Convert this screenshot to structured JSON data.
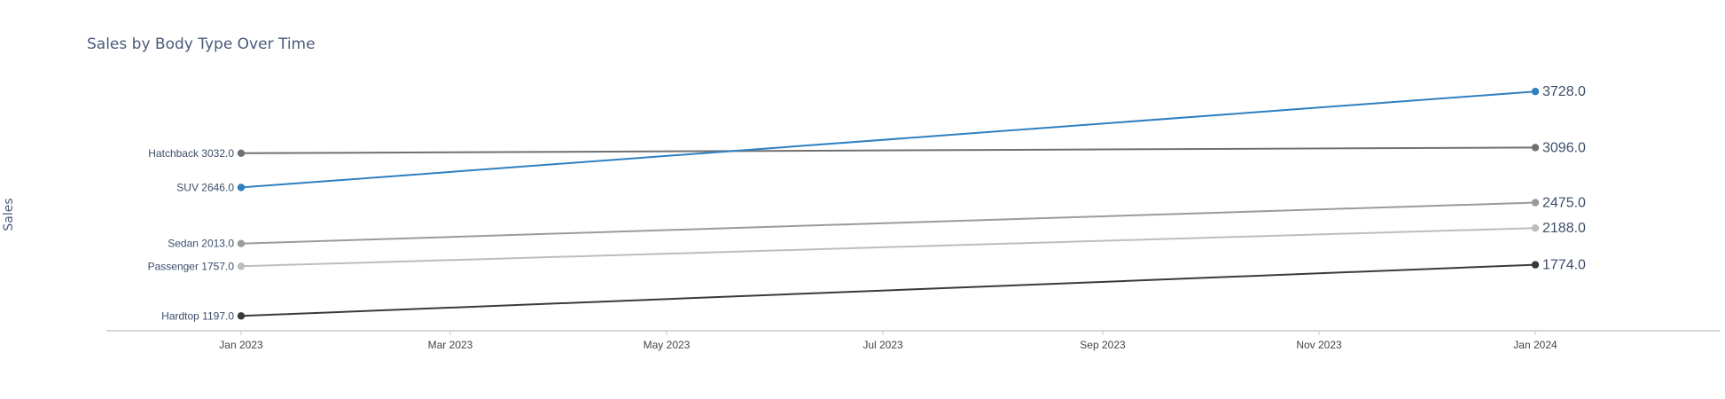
{
  "chart_data": {
    "type": "line",
    "title": "Sales by Body Type Over Time",
    "xlabel": "",
    "ylabel": "Sales",
    "x": [
      "2023-01-01",
      "2024-01-01"
    ],
    "x_ticks": [
      "Jan 2023",
      "Mar 2023",
      "May 2023",
      "Jul 2023",
      "Sep 2023",
      "Nov 2023",
      "Jan 2024"
    ],
    "x_tick_dates": [
      "2023-01-01",
      "2023-03-01",
      "2023-05-01",
      "2023-07-01",
      "2023-09-01",
      "2023-11-01",
      "2024-01-01"
    ],
    "xlim": [
      "2022-11-24",
      "2024-02-22"
    ],
    "ylim": [
      1030,
      4060
    ],
    "grid": false,
    "legend": "none",
    "series": [
      {
        "name": "Hatchback",
        "values": [
          3032.0,
          3096.0
        ],
        "color": "#707070",
        "start_label": "Hatchback 3032.0",
        "end_label": "3096.0"
      },
      {
        "name": "SUV",
        "values": [
          2646.0,
          3728.0
        ],
        "color": "#2f7fbf",
        "start_label": "SUV 2646.0",
        "end_label": "3728.0"
      },
      {
        "name": "Sedan",
        "values": [
          2013.0,
          2475.0
        ],
        "color": "#9b9b9b",
        "start_label": "Sedan 2013.0",
        "end_label": "2475.0"
      },
      {
        "name": "Passenger",
        "values": [
          1757.0,
          2188.0
        ],
        "color": "#bdbdbd",
        "start_label": "Passenger 1757.0",
        "end_label": "2188.0"
      },
      {
        "name": "Hardtop",
        "values": [
          1197.0,
          1774.0
        ],
        "color": "#3a3a3a",
        "start_label": "Hardtop 1197.0",
        "end_label": "1774.0"
      }
    ]
  }
}
